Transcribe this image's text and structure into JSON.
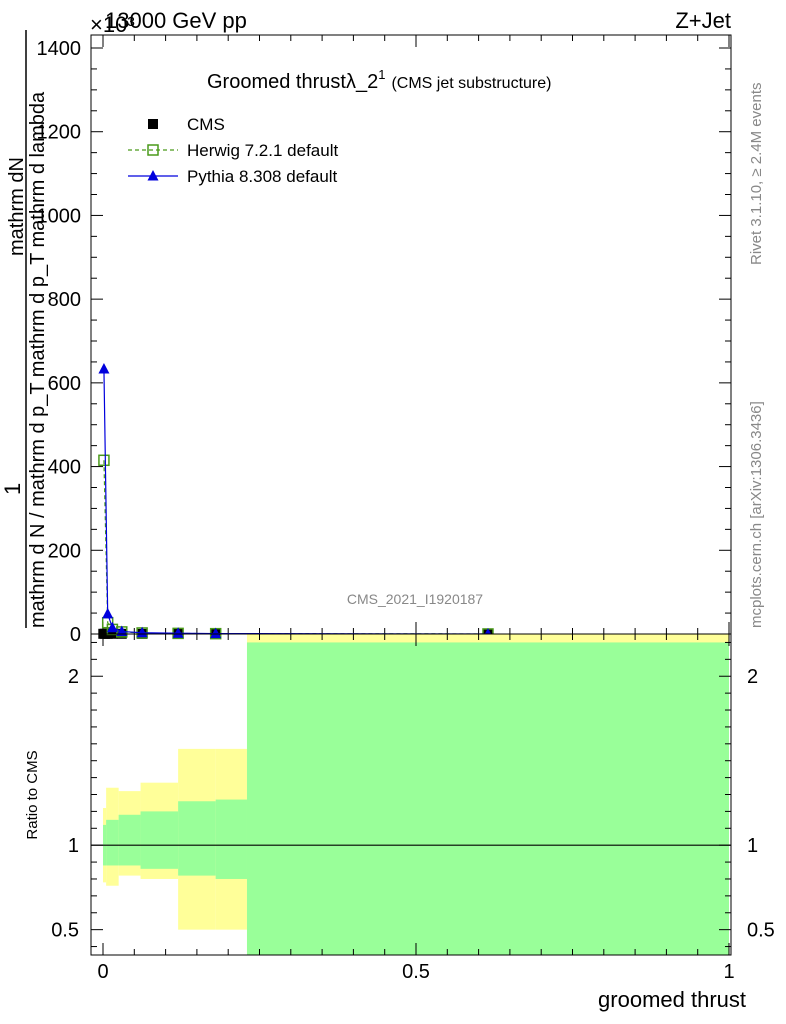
{
  "header": {
    "left": "13000 GeV pp",
    "right": "Z+Jet",
    "multiplier": "×10³"
  },
  "side_labels": {
    "rivet": "Rivet 3.1.10, ≥ 2.4M events",
    "mcplots": "mcplots.cern.ch [arXiv:1306.3436]"
  },
  "chart_data": {
    "type": "line",
    "title": "Groomed thrustλ_2",
    "title_sup": "1",
    "subtitle": "(CMS jet substructure)",
    "watermark": "CMS_2021_I1920187",
    "ylabel_numerator": "mathrm dN",
    "ylabel_numerator_sub": "T",
    "ylabel_denominator": "mathrm d p",
    "ylabel_full_numerator": "1",
    "ylabel_full_denominator": "mathrm d N / mathrm d p_T mathrm d p_T mathrm d lambda",
    "xlabel": "groomed thrust",
    "ratio_ylabel": "Ratio to CMS",
    "xlim": [
      0,
      1
    ],
    "ylim": [
      0,
      1400
    ],
    "ylim_multiplier": 1000,
    "ratio_ylim": [
      0.35,
      2.25
    ],
    "x_ticks": [
      0,
      0.5,
      1
    ],
    "x_tick_labels": [
      "0",
      "0.5",
      "1"
    ],
    "y_ticks": [
      0,
      200,
      400,
      600,
      800,
      1000,
      1200,
      1400
    ],
    "y_tick_labels": [
      "0",
      "200",
      "400",
      "600",
      "800",
      "1000",
      "1200",
      "1400"
    ],
    "ratio_ticks": [
      0.5,
      1,
      2
    ],
    "ratio_tick_labels": [
      "0.5",
      "1",
      "2"
    ],
    "legend_position": "top-left",
    "colors": {
      "cms": "#000000",
      "herwig": "#4a9a1a",
      "pythia": "#0000dd",
      "band_inner": "#99ff99",
      "band_outer": "#ffff99"
    },
    "series": [
      {
        "name": "CMS",
        "marker": "filled-square",
        "x": [
          0.0005,
          0.003,
          0.0075,
          0.015,
          0.03,
          0.0625,
          0.12,
          0.18,
          0.615
        ],
        "values": [
          0.5,
          0.5,
          0.5,
          0.5,
          0.5,
          0.3,
          0.2,
          0.1,
          0.05
        ]
      },
      {
        "name": "Herwig 7.2.1 default",
        "marker": "open-square",
        "x": [
          0.0015,
          0.0075,
          0.015,
          0.03,
          0.0625,
          0.12,
          0.18,
          0.615
        ],
        "values": [
          415,
          27,
          11,
          5,
          2.5,
          1.5,
          0.8,
          0.1
        ]
      },
      {
        "name": "Pythia 8.308 default",
        "marker": "filled-triangle",
        "x": [
          0.0015,
          0.0075,
          0.015,
          0.03,
          0.0625,
          0.12,
          0.18,
          0.615
        ],
        "values": [
          633,
          48,
          15,
          6,
          3,
          1.8,
          1,
          0.1
        ]
      }
    ],
    "ratio_bands": [
      {
        "x0": 0.0,
        "x1": 0.005,
        "inner": [
          0.88,
          1.12
        ],
        "outer": [
          0.78,
          1.22
        ]
      },
      {
        "x0": 0.005,
        "x1": 0.025,
        "inner": [
          0.88,
          1.15
        ],
        "outer": [
          0.76,
          1.34
        ]
      },
      {
        "x0": 0.025,
        "x1": 0.06,
        "inner": [
          0.88,
          1.18
        ],
        "outer": [
          0.82,
          1.32
        ]
      },
      {
        "x0": 0.06,
        "x1": 0.12,
        "inner": [
          0.86,
          1.2
        ],
        "outer": [
          0.8,
          1.37
        ]
      },
      {
        "x0": 0.12,
        "x1": 0.18,
        "inner": [
          0.82,
          1.26
        ],
        "outer": [
          0.5,
          1.57
        ]
      },
      {
        "x0": 0.18,
        "x1": 0.23,
        "inner": [
          0.8,
          1.27
        ],
        "outer": [
          0.5,
          1.57
        ]
      },
      {
        "x0": 0.23,
        "x1": 1.0,
        "inner": [
          0.35,
          2.2
        ],
        "outer": [
          0.35,
          2.25
        ]
      }
    ],
    "ratio_reference": 1
  }
}
